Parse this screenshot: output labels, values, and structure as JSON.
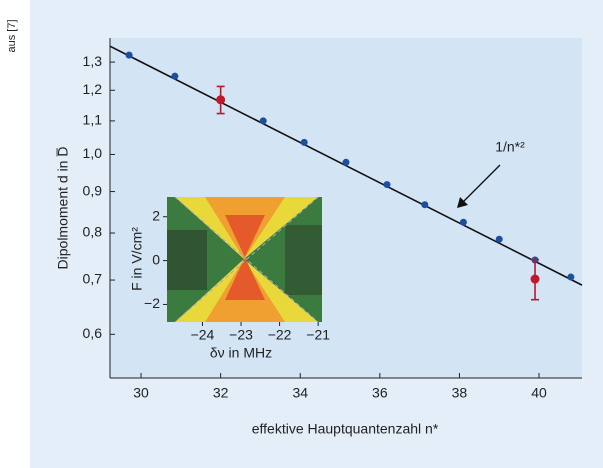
{
  "source_note": "aus [7]",
  "chart_data": {
    "type": "scatter",
    "xlabel": "effektive Hauptquantenzahl n*",
    "ylabel": "Dipolmoment d in D̅",
    "annotation": "1/n*²",
    "xlim": [
      29.22,
      41.08
    ],
    "ylim": [
      0.53,
      1.392
    ],
    "ylog": true,
    "xticks": [
      30,
      32,
      34,
      36,
      38,
      40
    ],
    "yticks": [
      {
        "value": 0.6,
        "label": "0,6"
      },
      {
        "value": 0.7,
        "label": "0,7"
      },
      {
        "value": 0.8,
        "label": "0,8"
      },
      {
        "value": 0.9,
        "label": "0,9"
      },
      {
        "value": 1.0,
        "label": "1,0"
      },
      {
        "value": 1.1,
        "label": "1,1"
      },
      {
        "value": 1.2,
        "label": "1,2"
      },
      {
        "value": 1.3,
        "label": "1,3"
      }
    ],
    "series": [
      {
        "style": "line",
        "color": "#111111",
        "x": [
          29.22,
          41.08
        ],
        "values": [
          1.36,
          0.69
        ]
      },
      {
        "style": "points",
        "color": "#1c4fa0",
        "x": [
          29.7,
          30.85,
          33.07,
          34.1,
          35.15,
          36.18,
          37.13,
          38.1,
          39.0,
          39.9,
          40.8
        ],
        "values": [
          1.326,
          1.249,
          1.1,
          1.035,
          0.978,
          0.918,
          0.867,
          0.825,
          0.786,
          0.741,
          0.706
        ]
      },
      {
        "style": "points",
        "color": "#c0182a",
        "x": [
          32.0,
          39.9
        ],
        "values": [
          1.168,
          0.702
        ],
        "errors": [
          0.045,
          0.04
        ]
      }
    ],
    "inset": {
      "xlabel": "δν in MHz",
      "ylabel": "F in V/cm²",
      "xlim": [
        -24.92,
        -20.9
      ],
      "ylim": [
        -2.8,
        2.9
      ],
      "xticks": [
        {
          "value": -24,
          "label": "−24"
        },
        {
          "value": -23,
          "label": "−23"
        },
        {
          "value": -22,
          "label": "−22"
        },
        {
          "value": -21,
          "label": "−21"
        }
      ],
      "yticks": [
        {
          "value": 2,
          "label": "2"
        },
        {
          "value": 0,
          "label": "0"
        },
        {
          "value": -2,
          "label": "−2"
        }
      ]
    }
  }
}
